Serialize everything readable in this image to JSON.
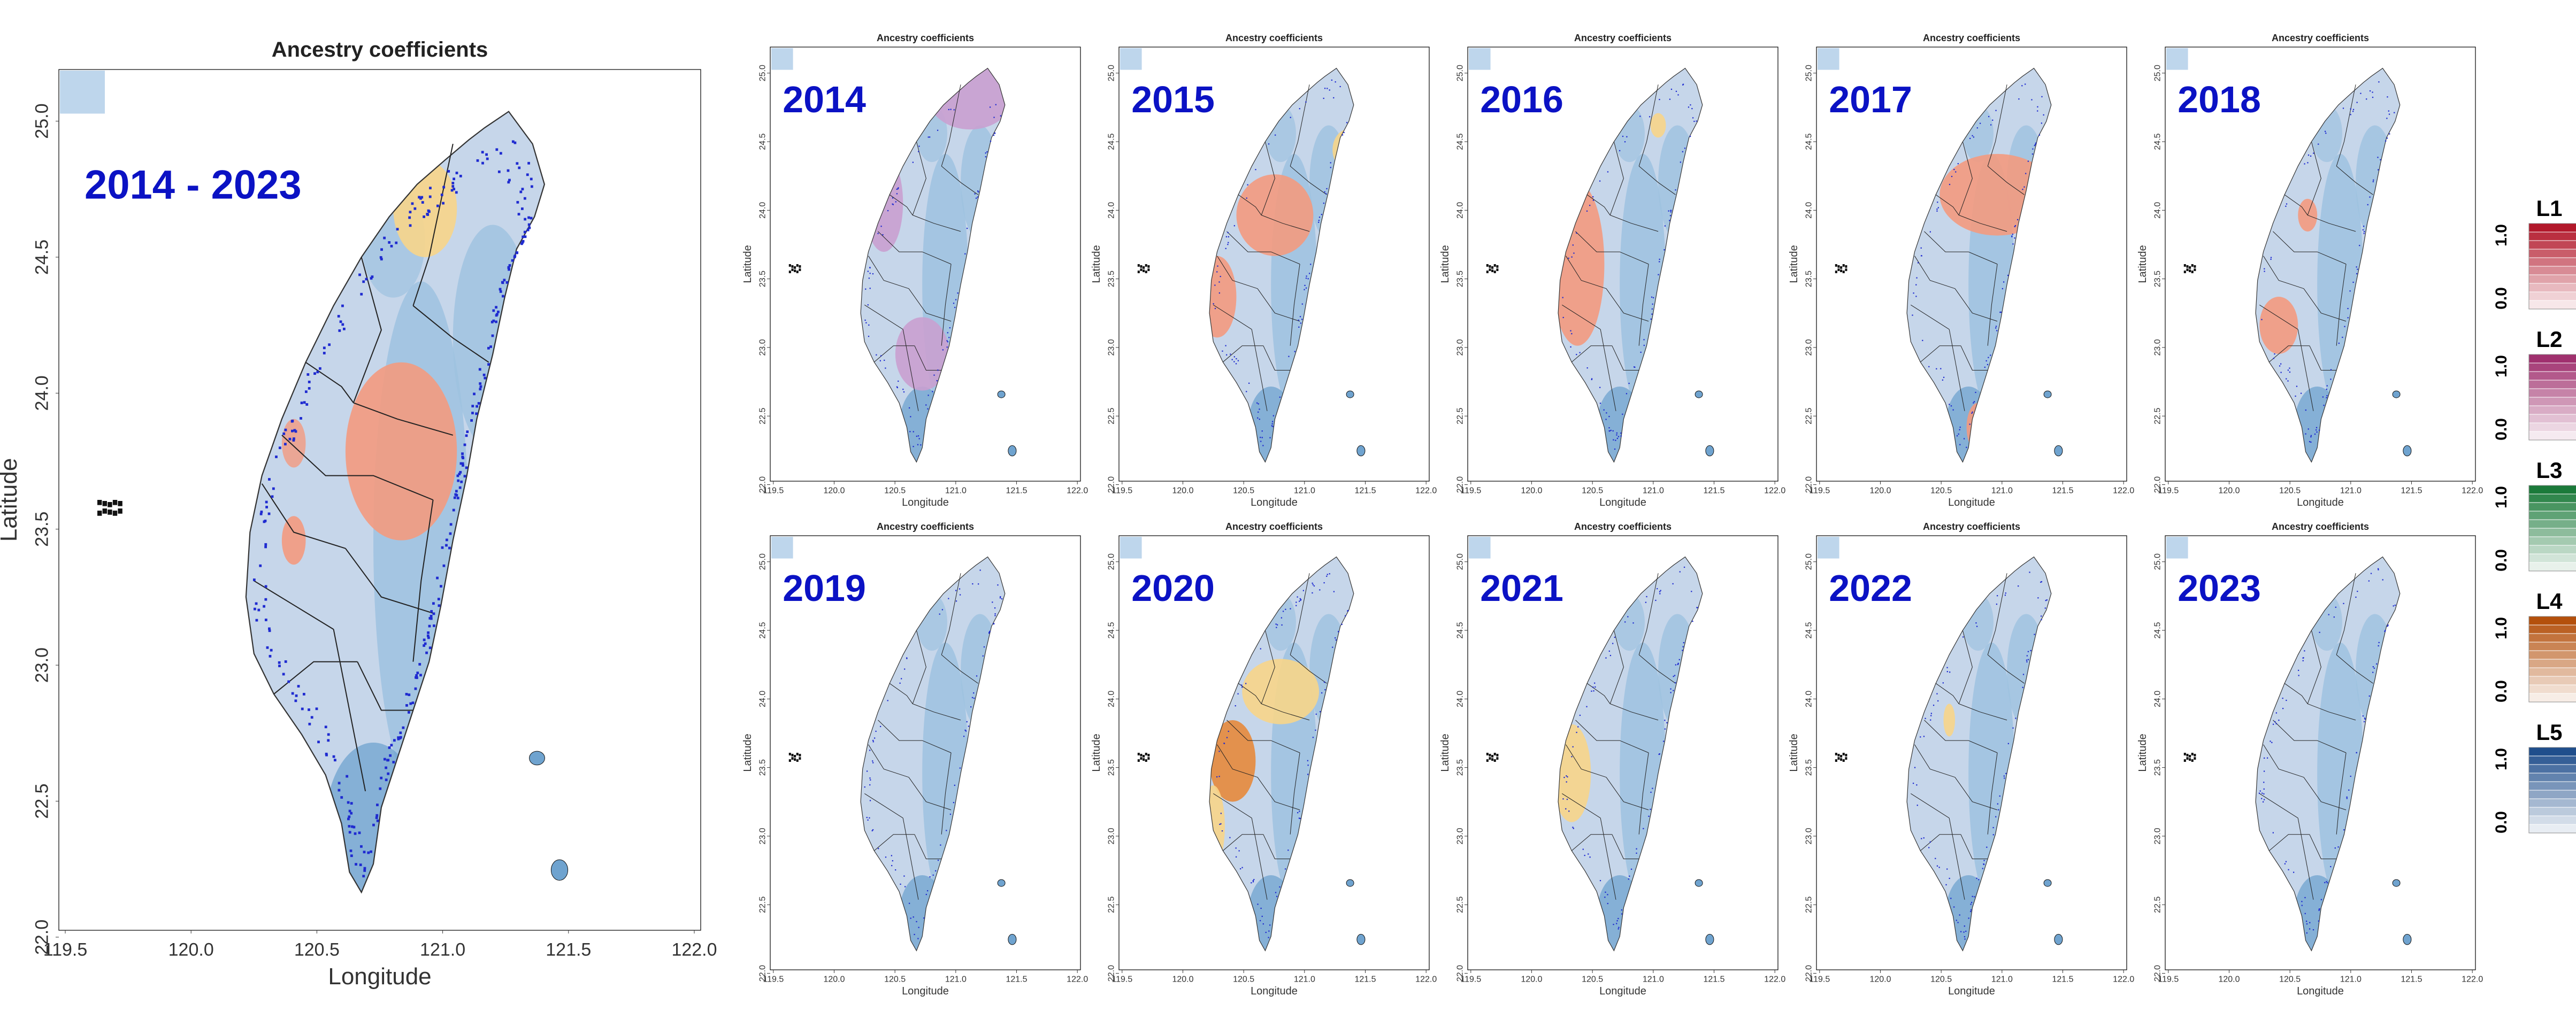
{
  "main_panel": {
    "title": "Ancestry coefficients",
    "period": "2014 - 2023",
    "xlabel": "Longitude",
    "ylabel": "Latitude",
    "x_ticks": [
      "119.5",
      "120.0",
      "120.5",
      "121.0",
      "121.5",
      "122.0"
    ],
    "y_ticks": [
      "25.0",
      "24.5",
      "24.0",
      "23.5",
      "23.0",
      "22.5",
      "22.0"
    ]
  },
  "small_panels": {
    "title": "Ancestry coefficients",
    "xlabel": "Longitude",
    "ylabel": "Latitude",
    "x_ticks": [
      "119.5",
      "120.0",
      "120.5",
      "121.0",
      "121.5",
      "122.0"
    ],
    "y_ticks": [
      "25.0",
      "24.5",
      "24.0",
      "23.5",
      "23.0",
      "22.5",
      "22.0"
    ],
    "years": [
      "2014",
      "2015",
      "2016",
      "2017",
      "2018",
      "2019",
      "2020",
      "2021",
      "2022",
      "2023"
    ]
  },
  "legend": [
    {
      "name": "L1",
      "max": "1.0",
      "min": "0.0",
      "color": "#b2182b"
    },
    {
      "name": "L2",
      "max": "1.0",
      "min": "0.0",
      "color": "#a0306e"
    },
    {
      "name": "L3",
      "max": "1.0",
      "min": "0.0",
      "color": "#1b7a3a"
    },
    {
      "name": "L4",
      "max": "1.0",
      "min": "0.0",
      "color": "#b4500c"
    },
    {
      "name": "L5",
      "max": "1.0",
      "min": "0.0",
      "color": "#1f4e8c"
    }
  ],
  "colors": {
    "base_light_blue": "#c6d6ea",
    "mid_blue": "#9ec2e0",
    "deep_blue": "#6fa3cf",
    "L1_patch": "#f39a80",
    "L2_patch": "#c9a0d0",
    "L4_patch": "#f7d58a",
    "L4_strong": "#e58a3c",
    "sample_points": "#1f2bd0",
    "year_label": "#0b12c4"
  }
}
